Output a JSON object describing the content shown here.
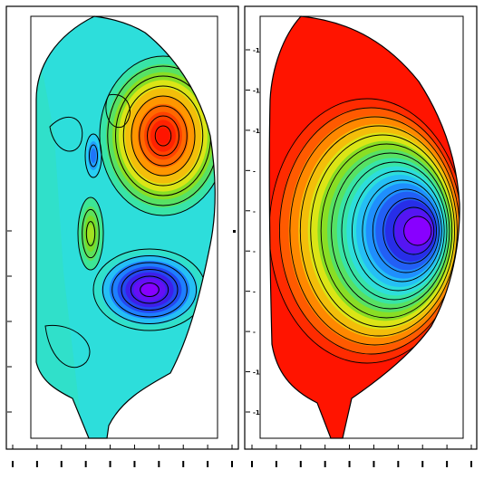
{
  "chart_data": [
    {
      "type": "contour",
      "title": "",
      "xlabel": "",
      "ylabel": "",
      "x_tick_labels": [
        "",
        "",
        "",
        "",
        "",
        "",
        "",
        "",
        "",
        ""
      ],
      "y_tick_labels": [
        "",
        "",
        "",
        "",
        ""
      ],
      "fill_colormap": "rainbow (blue low, red high)",
      "regions": [
        {
          "name": "positive lobe (upper right)",
          "level": 1.0
        },
        {
          "name": "negative lobe (lower centre)",
          "level": -1.0
        },
        {
          "name": "weak lobe (centre left)",
          "level": 0.35
        },
        {
          "name": "weak negative (upper left)",
          "level": -0.45
        }
      ]
    },
    {
      "type": "contour",
      "title": "",
      "xlabel": "",
      "ylabel": "",
      "x_tick_labels": [
        "",
        "",
        "",
        "",
        "",
        "",
        "",
        "",
        "",
        ""
      ],
      "y_tick_labels": [
        "-1",
        "-1",
        "-1",
        "-",
        "-",
        "-",
        "-",
        "-",
        "-1",
        "-1"
      ],
      "fill_colormap": "rainbow (blue low, red high)",
      "regions": [
        {
          "name": "core minimum (right of centre)",
          "level": 0.0
        },
        {
          "name": "edge (plasma boundary)",
          "level": 1.0
        }
      ]
    }
  ]
}
